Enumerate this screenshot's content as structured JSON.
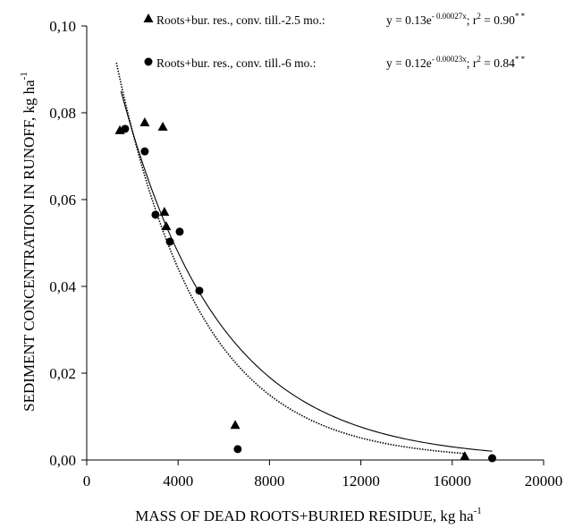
{
  "chart_data": {
    "type": "scatter",
    "x_label": [
      "MASS OF DEAD ROOTS+BURIED RESIDUE, kg ha",
      "-1"
    ],
    "y_label": [
      "SEDIMENT CONCENTRATION IN RUNOFF, kg ha",
      "-1"
    ],
    "xlim": [
      0,
      20000
    ],
    "xticks": [
      0,
      4000,
      8000,
      12000,
      16000,
      20000
    ],
    "ylim": [
      0,
      0.1
    ],
    "yticks": [
      {
        "value": 0,
        "label": "0,00"
      },
      {
        "value": 0.02,
        "label": "0,02"
      },
      {
        "value": 0.04,
        "label": "0,04"
      },
      {
        "value": 0.06,
        "label": "0,06"
      },
      {
        "value": 0.08,
        "label": "0,08"
      },
      {
        "value": 0.1,
        "label": "0,10"
      }
    ],
    "series": [
      {
        "name": "Roots+bur. res., conv. till.-2.5 mo.:",
        "marker": "triangle",
        "color": "#000000",
        "line_style": "dotted",
        "equation": [
          "y = 0.13e",
          "- 0.00027x",
          "; r",
          "2",
          " = 0.90",
          "* *"
        ],
        "fit": {
          "a": 0.13,
          "b": -0.00027,
          "x_range": [
            1300,
            16500
          ]
        },
        "x": [
          1450,
          2540,
          3330,
          3400,
          3480,
          6500,
          16550
        ],
        "values": [
          0.0759,
          0.0777,
          0.0767,
          0.0571,
          0.0538,
          0.008,
          0.0008
        ]
      },
      {
        "name": "Roots+bur. res., conv. till.-6 mo.:",
        "marker": "circle",
        "color": "#000000",
        "line_style": "solid",
        "equation": [
          "y = 0.12e",
          "- 0.00023x",
          "; r",
          "2",
          " = 0.84",
          "* *"
        ],
        "fit": {
          "a": 0.12,
          "b": -0.00023,
          "x_range": [
            1500,
            17750
          ]
        },
        "x": [
          1680,
          2540,
          3010,
          3640,
          4070,
          4930,
          6610,
          17750
        ],
        "values": [
          0.0763,
          0.0711,
          0.0565,
          0.0503,
          0.0526,
          0.039,
          0.0025,
          0.0004
        ]
      }
    ]
  }
}
